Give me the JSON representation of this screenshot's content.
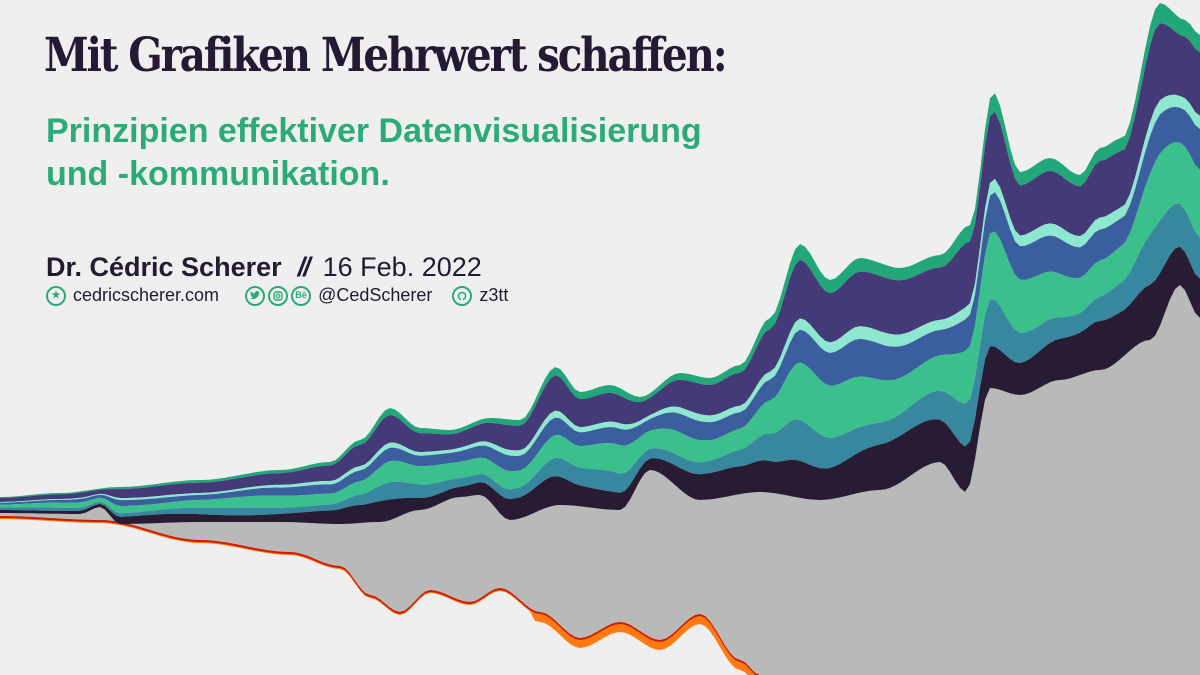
{
  "title": "Mit Grafiken Mehrwert schaffen:",
  "subtitle": {
    "line1": "Prinzipien effektiver Datenvisualisierung",
    "line2": "und -kommunikation."
  },
  "byline": {
    "author": "Dr. Cédric Scherer",
    "separator": "//",
    "date": "16 Feb. 2022"
  },
  "contacts": {
    "website": "cedricscherer.com",
    "website_icon": "star-icon",
    "social_icons": [
      "twitter-icon",
      "instagram-icon",
      "behance-icon"
    ],
    "social_handle": "@CedScherer",
    "github_icon": "github-icon",
    "github_handle": "z3tt"
  },
  "colors": {
    "background": "#efefef",
    "title": "#241a33",
    "accent_green": "#2cab78",
    "stream_layers": [
      "#22a878",
      "#453a78",
      "#8ee8cf",
      "#3a5e9e",
      "#3bbf8c",
      "#37879f",
      "#271c33"
    ],
    "grey_area": "#b9b9b9",
    "orange": "#ff7a10",
    "red": "#c81e0a"
  }
}
